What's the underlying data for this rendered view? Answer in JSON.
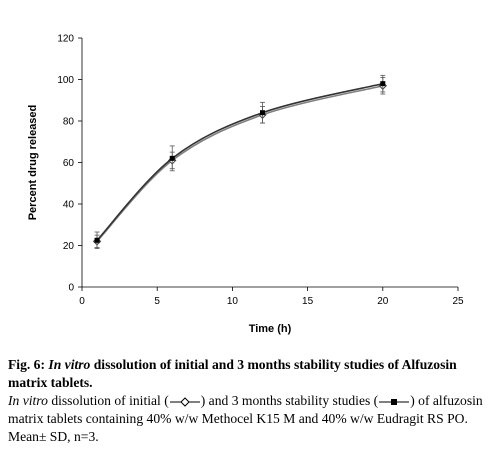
{
  "chart_data": {
    "type": "line",
    "xlabel": "Time (h)",
    "ylabel": "Percent drug released",
    "xlim": [
      0,
      25
    ],
    "ylim": [
      0,
      120
    ],
    "xticks": [
      0,
      5,
      10,
      15,
      20,
      25
    ],
    "yticks": [
      0,
      20,
      40,
      60,
      80,
      100,
      120
    ],
    "grid": false,
    "series": [
      {
        "marker": "open-diamond",
        "x": [
          1,
          6,
          12,
          20
        ],
        "y": [
          22,
          61,
          83,
          97
        ],
        "err": [
          3,
          4,
          4,
          4
        ],
        "color": "#7f7f7f"
      },
      {
        "marker": "filled-square",
        "x": [
          1,
          6,
          12,
          20
        ],
        "y": [
          22.5,
          62,
          84,
          98
        ],
        "err": [
          4,
          6,
          5,
          4
        ],
        "color": "#333333"
      }
    ]
  },
  "caption": {
    "fig_label": "Fig. 6:",
    "title_italic": "In vitro",
    "title_rest": "dissolution of initial and 3 months stability studies of Alfuzosin matrix tablets.",
    "body_italic": "In vitro",
    "body_part1": "dissolution of initial (",
    "body_part2": ") and 3 months stability studies (",
    "body_part3": ") of alfuzosin matrix tablets containing 40% w/w Methocel K15 M and 40% w/w Eudragit RS PO. Mean± SD, n=3."
  }
}
